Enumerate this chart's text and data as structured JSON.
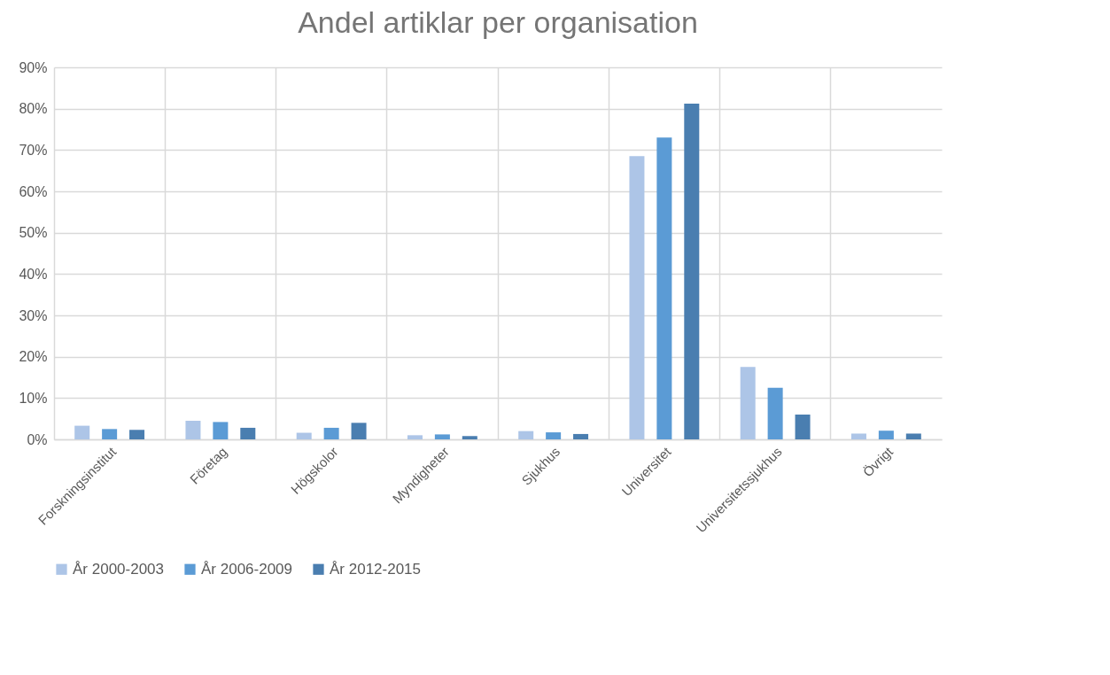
{
  "chart_data": {
    "type": "bar",
    "title": "Andel artiklar per organisation",
    "categories": [
      "Forskningsinstitut",
      "Företag",
      "Högskolor",
      "Myndigheter",
      "Sjukhus",
      "Universitet",
      "Universitetssjukhus",
      "Övrigt"
    ],
    "series": [
      {
        "name": "År 2000-2003",
        "color": "#adc5e7",
        "values": [
          3.3,
          4.5,
          1.6,
          1.0,
          2.0,
          68.5,
          17.5,
          1.4
        ]
      },
      {
        "name": "År 2006-2009",
        "color": "#5b9bd5",
        "values": [
          2.5,
          4.2,
          2.8,
          1.2,
          1.7,
          73,
          12.5,
          2.1
        ]
      },
      {
        "name": "År 2012-2015",
        "color": "#4a7eb0",
        "values": [
          2.3,
          2.8,
          4.0,
          0.8,
          1.3,
          81.2,
          6.0,
          1.4
        ]
      }
    ],
    "ylim": [
      0,
      90
    ],
    "yticks": [
      {
        "value": 0,
        "label": "0%"
      },
      {
        "value": 10,
        "label": "10%"
      },
      {
        "value": 20,
        "label": "20%"
      },
      {
        "value": 30,
        "label": "30%"
      },
      {
        "value": 40,
        "label": "40%"
      },
      {
        "value": 50,
        "label": "50%"
      },
      {
        "value": 60,
        "label": "60%"
      },
      {
        "value": 70,
        "label": "70%"
      },
      {
        "value": 80,
        "label": "80%"
      },
      {
        "value": 90,
        "label": "90%"
      }
    ],
    "grid": true,
    "legend": "bottom"
  }
}
